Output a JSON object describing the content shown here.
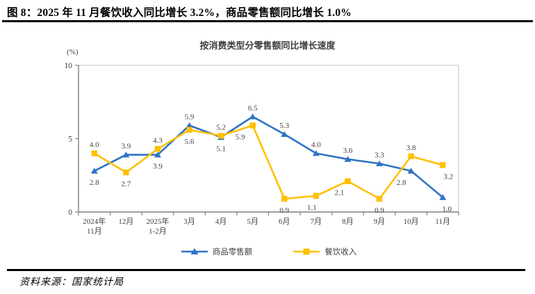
{
  "page": {
    "title": "图 8：2025 年 11 月餐饮收入同比增长 3.2%，商品零售额同比增长 1.0%",
    "source": "资料来源：国家统计局"
  },
  "chart_data": {
    "type": "line",
    "title": "按消费类型分零售额同比增长速度",
    "ylabel": "(%)",
    "ylim": [
      0,
      10
    ],
    "yticks": [
      0,
      5,
      10
    ],
    "grid": false,
    "legend_position": "bottom",
    "categories": [
      "2024年|11月",
      "12月",
      "2025年|1-2月",
      "3月",
      "4月",
      "5月",
      "6月",
      "7月",
      "8月",
      "9月",
      "10月",
      "11月"
    ],
    "series": [
      {
        "name": "商品零售额",
        "color": "#2E73C5",
        "marker": "triangle",
        "values": [
          2.8,
          3.9,
          3.9,
          5.9,
          5.1,
          6.5,
          5.3,
          4.0,
          3.6,
          3.3,
          2.8,
          1.0
        ],
        "label_side": [
          "below",
          "above",
          "below",
          "above",
          "below",
          "above",
          "above",
          "above",
          "above",
          "above",
          "below",
          "below"
        ],
        "label_dx": [
          0,
          0,
          0,
          0,
          0,
          0,
          0,
          0,
          0,
          0,
          -14,
          6
        ]
      },
      {
        "name": "餐饮收入",
        "color": "#FFC000",
        "marker": "square",
        "values": [
          4.0,
          2.7,
          4.3,
          5.6,
          5.2,
          5.9,
          0.9,
          1.1,
          2.1,
          0.9,
          3.8,
          3.2
        ],
        "label_side": [
          "above",
          "below",
          "above",
          "below",
          "above",
          "below",
          "below",
          "below",
          "below",
          "below",
          "above",
          "below"
        ],
        "label_dx": [
          0,
          0,
          0,
          0,
          0,
          -18,
          0,
          -6,
          -12,
          0,
          0,
          8
        ]
      }
    ]
  }
}
